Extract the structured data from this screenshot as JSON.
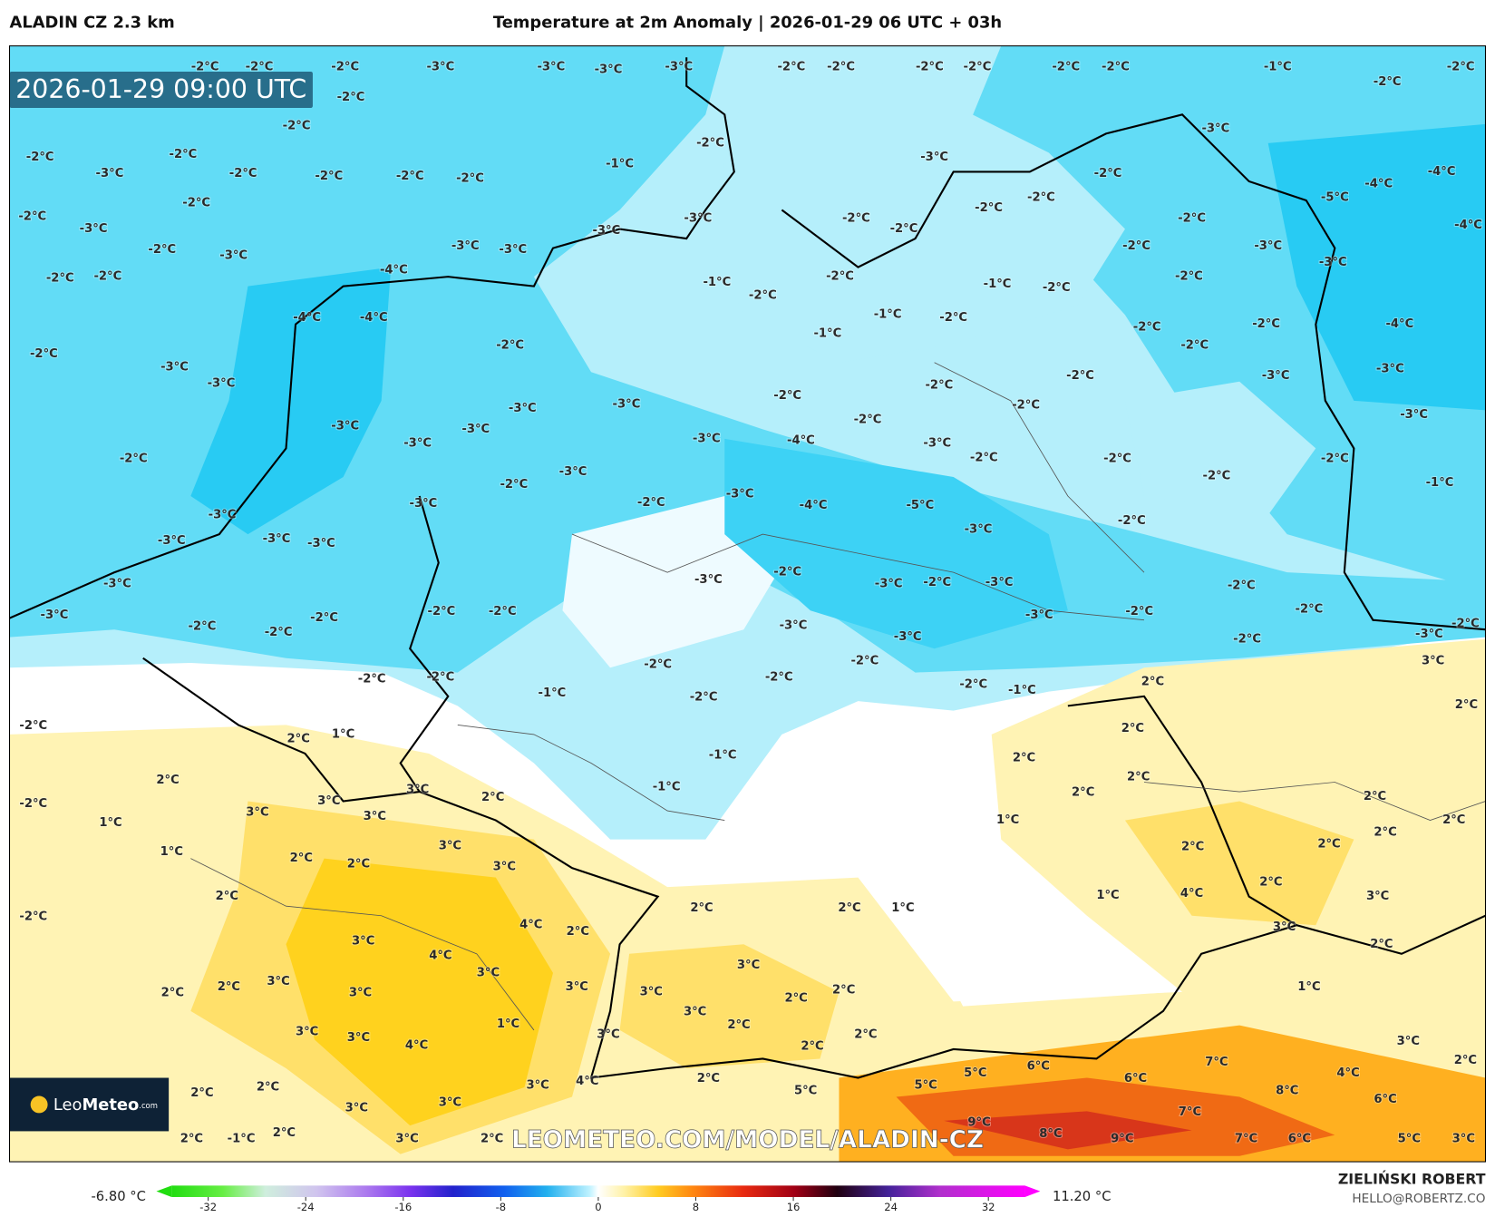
{
  "header": {
    "left": "ALADIN CZ 2.3 km",
    "title": "Temperature at 2m Anomaly | 2026-01-29 06 UTC + 03h"
  },
  "map": {
    "valid_time": "2026-01-29 09:00 UTC",
    "logo_leo": "Leo",
    "logo_meteo": "Meteo",
    "logo_domain": ".com",
    "watermark": "LEOMETEO.COM/MODEL/ALADIN-CZ",
    "labels": [
      "-2°C",
      "-2°C",
      "-2°C",
      "-3°C",
      "-3°C",
      "-3°C",
      "-3°C",
      "-2°C",
      "-2°C",
      "-2°C",
      "-2°C",
      "-2°C",
      "-2°C",
      "-1°C",
      "-2°C",
      "-2°C",
      "-2°C",
      "-2°C",
      "-2°C",
      "-3°C",
      "-2°C",
      "-2°C",
      "-1°C",
      "-3°C",
      "-3°C",
      "-2°C",
      "-2°C",
      "-2°C",
      "-2°C",
      "-2°C",
      "-2°C",
      "-4°C",
      "-4°C",
      "-5°C",
      "-2°C",
      "-2°C",
      "-2°C",
      "-3°C",
      "-3°C",
      "-2°C",
      "-2°C",
      "-2°C",
      "-4°C",
      "-2°C",
      "-3°C",
      "-3°C",
      "-3°C",
      "-3°C",
      "-2°C",
      "-3°C",
      "-3°C",
      "-4°C",
      "-2°C",
      "-2°C",
      "-1°C",
      "-2°C",
      "-1°C",
      "-2°C",
      "-2°C",
      "-2°C",
      "-4°C",
      "-4°C",
      "-1°C",
      "-2°C",
      "-2°C",
      "-2°C",
      "-4°C",
      "-2°C",
      "-1°C",
      "-2°C",
      "-2°C",
      "-3°C",
      "-3°C",
      "-2°C",
      "-3°C",
      "-3°C",
      "-2°C",
      "-2°C",
      "-3°C",
      "-3°C",
      "-2°C",
      "-3°C",
      "-2°C",
      "-3°C",
      "-3°C",
      "-3°C",
      "-3°C",
      "-4°C",
      "-3°C",
      "-2°C",
      "-2°C",
      "-2°C",
      "-2°C",
      "-3°C",
      "-2°C",
      "-1°C",
      "-2°C",
      "-3°C",
      "-4°C",
      "-5°C",
      "-3°C",
      "-2°C",
      "-3°C",
      "-2°C",
      "-3°C",
      "-3°C",
      "-3°C",
      "-3°C",
      "-3°C",
      "-2°C",
      "-3°C",
      "-3°C",
      "-2°C",
      "-3°C",
      "-2°C",
      "-3°C",
      "-2°C",
      "-2°C",
      "-2°C",
      "-2°C",
      "-3°C",
      "-2°C",
      "-2°C",
      "-3°C",
      "-2°C",
      "-2°C",
      "-3°C",
      "-3°C",
      "-2°C",
      "3°C",
      "-2°C",
      "-2°C",
      "-2°C",
      "-2°C",
      "-2°C",
      "-2°C",
      "-1°C",
      "2°C",
      "-1°C",
      "-2°C",
      "2°C",
      "2°C",
      "-2°C",
      "1°C",
      "2°C",
      "-1°C",
      "2°C",
      "2°C",
      "2°C",
      "-1°C",
      "2°C",
      "3°C",
      "3°C",
      "2°C",
      "-2°C",
      "3°C",
      "3°C",
      "2°C",
      "1°C",
      "1°C",
      "2°C",
      "2°C",
      "3°C",
      "2°C",
      "2°C",
      "1°C",
      "2°C",
      "2°C",
      "3°C",
      "2°C",
      "2°C",
      "4°C",
      "1°C",
      "3°C",
      "2°C",
      "2°C",
      "1°C",
      "-2°C",
      "4°C",
      "3°C",
      "2°C",
      "3°C",
      "2°C",
      "4°C",
      "3°C",
      "3°C",
      "3°C",
      "2°C",
      "3°C",
      "1°C",
      "2°C",
      "3°C",
      "3°C",
      "2°C",
      "2°C",
      "3°C",
      "1°C",
      "2°C",
      "3°C",
      "2°C",
      "3°C",
      "3°C",
      "4°C",
      "2°C",
      "3°C",
      "2°C",
      "7°C",
      "6°C",
      "5°C",
      "4°C",
      "2°C",
      "3°C",
      "4°C",
      "5°C",
      "2°C",
      "8°C",
      "6°C",
      "5°C",
      "2°C",
      "6°C",
      "3°C",
      "3°C",
      "7°C",
      "9°C",
      "8°C",
      "2°C",
      "-1°C",
      "2°C",
      "3°C",
      "2°C",
      "9°C",
      "7°C",
      "6°C",
      "5°C",
      "3°C"
    ]
  },
  "colorbar": {
    "min_label": "-6.80 °C",
    "max_label": "11.20 °C",
    "range": [
      -35,
      35
    ],
    "ticks": [
      -32,
      -24,
      -16,
      -8,
      0,
      8,
      16,
      24,
      32
    ]
  },
  "footer": {
    "author": "ZIELIŃSKI ROBERT",
    "email": "HELLO@ROBERTZ.CO"
  }
}
